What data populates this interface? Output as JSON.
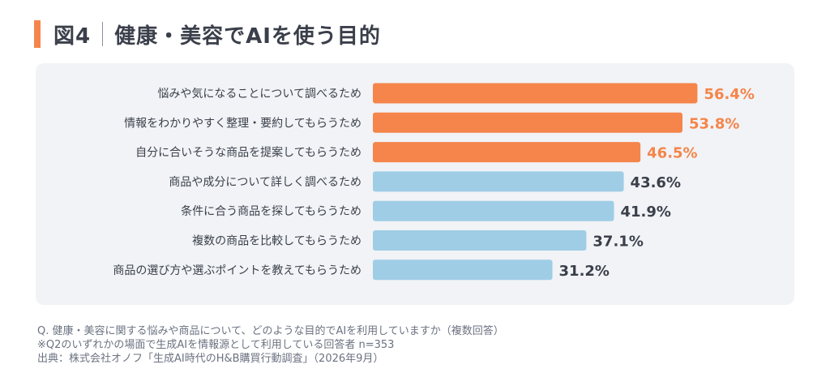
{
  "header": {
    "figure_label": "図4",
    "title": "健康・美容でAIを使う目的"
  },
  "chart_data": {
    "type": "bar",
    "orientation": "horizontal",
    "title": "健康・美容でAIを使う目的",
    "categories": [
      "悩みや気になることについて調べるため",
      "情報をわかりやすく整理・要約してもらうため",
      "自分に合いそうな商品を提案してもらうため",
      "商品や成分について詳しく調べるため",
      "条件に合う商品を探してもらうため",
      "複数の商品を比較してもらうため",
      "商品の選び方や選ぶポイントを教えてもらうため"
    ],
    "values": [
      56.4,
      53.8,
      46.5,
      43.6,
      41.9,
      37.1,
      31.2
    ],
    "value_labels": [
      "56.4%",
      "53.8%",
      "46.5%",
      "43.6%",
      "41.9%",
      "37.1%",
      "31.2%"
    ],
    "unit": "%",
    "xlim": [
      0,
      70
    ],
    "grid": false,
    "highlight_count": 3,
    "colors": {
      "highlight": "#f5854a",
      "normal": "#9fcde6",
      "highlight_label": "#f5854a",
      "normal_label": "#3a3f4a",
      "category_label": "#3a3f4a"
    }
  },
  "notes": {
    "question": "Q. 健康・美容に関する悩みや商品について、どのような目的でAIを利用していますか（複数回答）",
    "scope": "※Q2のいずれかの場面で生成AIを情報源として利用している回答者 n=353",
    "source": "出典：株式会社オノフ「生成AI時代のH&B購買行動調査」（2026年9月）"
  }
}
